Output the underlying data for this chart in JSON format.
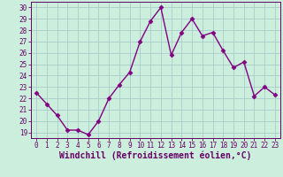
{
  "x": [
    0,
    1,
    2,
    3,
    4,
    5,
    6,
    7,
    8,
    9,
    10,
    11,
    12,
    13,
    14,
    15,
    16,
    17,
    18,
    19,
    20,
    21,
    22,
    23
  ],
  "y": [
    22.5,
    21.5,
    20.5,
    19.2,
    19.2,
    18.8,
    20.0,
    22.0,
    23.2,
    24.3,
    27.0,
    28.8,
    30.0,
    25.8,
    27.8,
    29.0,
    27.5,
    27.8,
    26.2,
    24.7,
    25.2,
    22.2,
    23.0,
    22.3
  ],
  "line_color": "#800080",
  "marker": "D",
  "marker_size": 2.5,
  "background_color": "#cceedd",
  "grid_color": "#aacccc",
  "xlabel": "Windchill (Refroidissement éolien,°C)",
  "xlabel_fontsize": 7,
  "ylim": [
    18.5,
    30.5
  ],
  "xlim": [
    -0.5,
    23.5
  ],
  "yticks": [
    19,
    20,
    21,
    22,
    23,
    24,
    25,
    26,
    27,
    28,
    29,
    30
  ],
  "xticks": [
    0,
    1,
    2,
    3,
    4,
    5,
    6,
    7,
    8,
    9,
    10,
    11,
    12,
    13,
    14,
    15,
    16,
    17,
    18,
    19,
    20,
    21,
    22,
    23
  ],
  "tick_fontsize": 5.5,
  "line_width": 1.0
}
